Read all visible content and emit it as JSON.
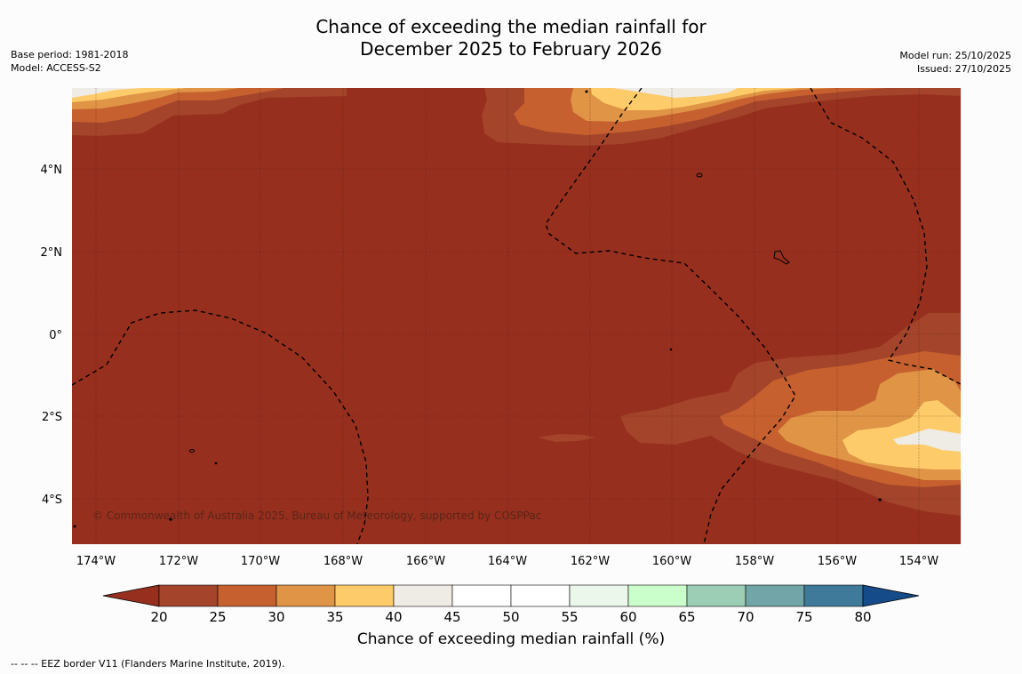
{
  "title": {
    "line1": "Chance of exceeding the median rainfall for",
    "line2": "December 2025 to February 2026"
  },
  "meta_left": {
    "base_period": "Base period: 1981-2018",
    "model": "Model: ACCESS-S2"
  },
  "meta_right": {
    "model_run": "Model run: 25/10/2025",
    "issued": "Issued: 27/10/2025"
  },
  "copyright": "© Commonwealth of Australia 2025, Bureau of Meteorology, supported by COSPPac",
  "map": {
    "lon_range": [
      -174.6,
      -153.1
    ],
    "lat_range": [
      -5.2,
      5.8
    ],
    "lon_ticks": [
      "174°W",
      "172°W",
      "170°W",
      "168°W",
      "166°W",
      "164°W",
      "162°W",
      "160°W",
      "158°W",
      "156°W",
      "154°W"
    ],
    "lat_ticks": [
      "4°N",
      "2°N",
      "0°",
      "2°S",
      "4°S"
    ],
    "background_category": "20-25"
  },
  "colorbar": {
    "label": "Chance of exceeding median rainfall (%)",
    "ticks": [
      "20",
      "25",
      "30",
      "35",
      "40",
      "45",
      "50",
      "55",
      "60",
      "65",
      "70",
      "75",
      "80"
    ],
    "colors": [
      "#a3442b",
      "#c7602f",
      "#df9446",
      "#fecb6a",
      "#efebe5",
      "#ffffff",
      "#ffffff",
      "#ebf7eb",
      "#caffcc",
      "#9ccdb5",
      "#71a5a8",
      "#3f7a9a"
    ],
    "below_color": "#972f1f",
    "above_color": "#154b89"
  },
  "legend_note": "-- -- -- EEZ border V11 (Flanders Marine Institute, 2019)."
}
